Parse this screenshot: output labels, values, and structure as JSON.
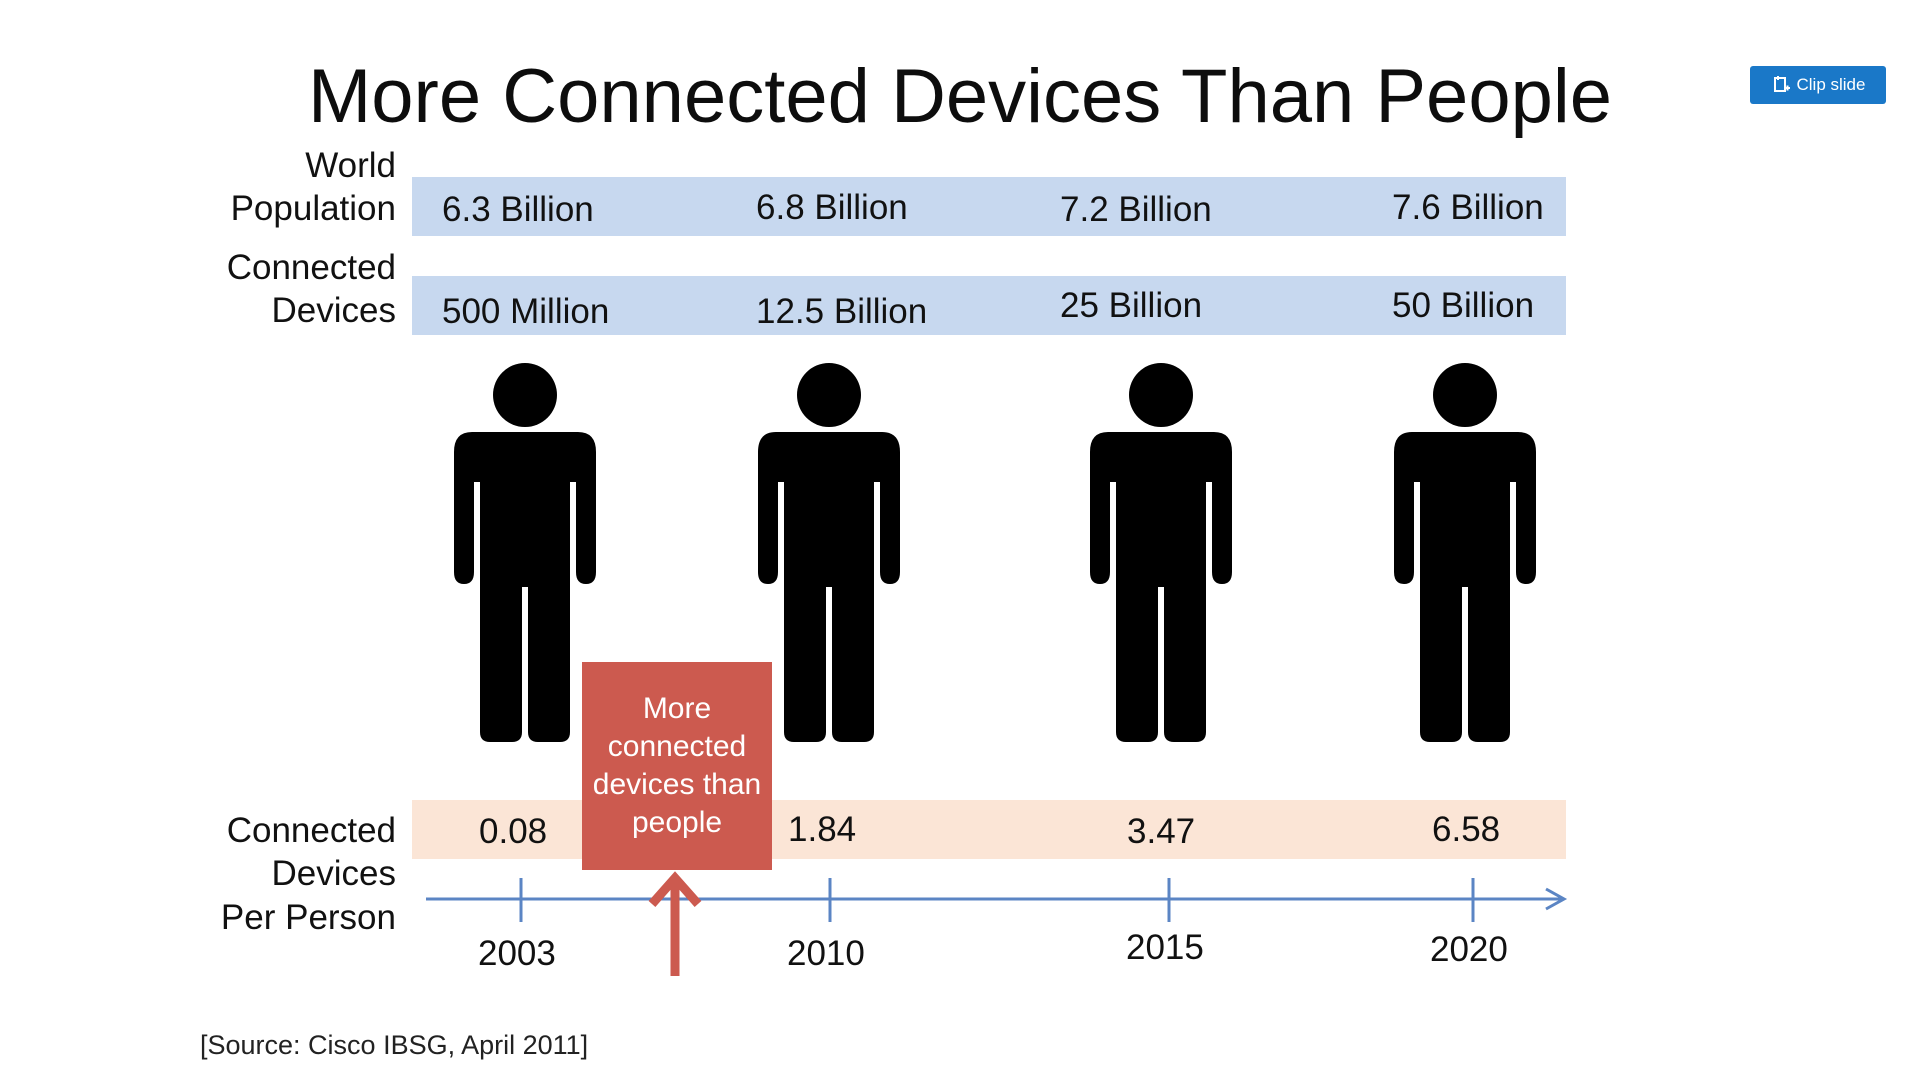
{
  "title": "More Connected Devices Than People",
  "clip_button": {
    "label": "Clip slide",
    "icon": "clip-icon"
  },
  "rows": {
    "population": {
      "label_line1": "World",
      "label_line2": "Population",
      "values": [
        "6.3 Billion",
        "6.8 Billion",
        "7.2 Billion",
        "7.6 Billion"
      ]
    },
    "devices": {
      "label_line1": "Connected",
      "label_line2": "Devices",
      "values": [
        "500 Million",
        "12.5 Billion",
        "25 Billion",
        "50 Billion"
      ]
    },
    "per_person": {
      "label_line1": "Connected",
      "label_line2": "Devices",
      "label_line3": "Per Person",
      "values": [
        "0.08",
        "1.84",
        "3.47",
        "6.58"
      ]
    }
  },
  "years": [
    "2003",
    "2010",
    "2015",
    "2020"
  ],
  "callout": {
    "text": "More connected devices than people"
  },
  "figure_icon": "person-icon",
  "colors": {
    "band_blue": "#c7d8ef",
    "band_peach": "#fbe5d6",
    "callout": "#cc5a4f",
    "timeline": "#5b85c4",
    "accent_button": "#1a78c8"
  },
  "source": "[Source: Cisco IBSG, April 2011]"
}
